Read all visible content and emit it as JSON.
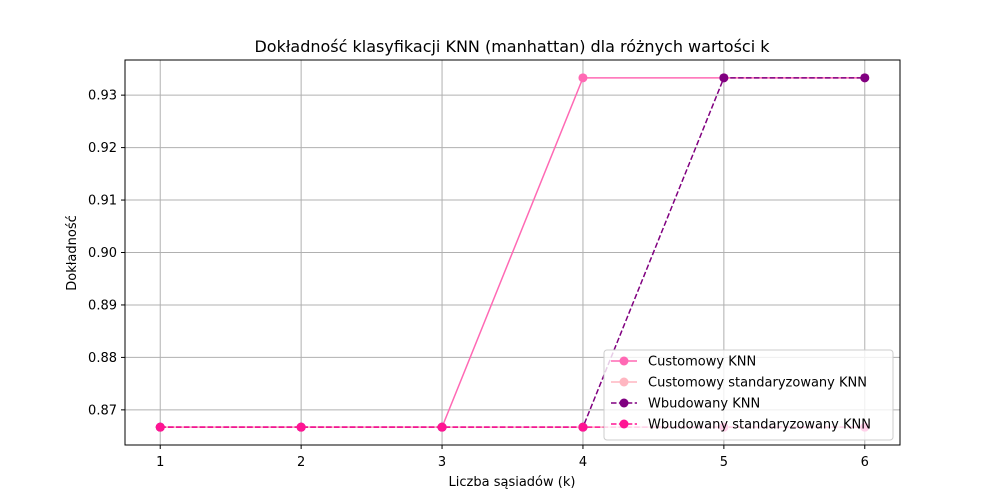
{
  "chart_data": {
    "type": "line",
    "title": "Dokładność klasyfikacji KNN (manhattan) dla różnych wartości k",
    "xlabel": "Liczba sąsiadów (k)",
    "ylabel": "Dokładność",
    "x": [
      1,
      2,
      3,
      4,
      5,
      6
    ],
    "x_ticks": [
      "1",
      "2",
      "3",
      "4",
      "5",
      "6"
    ],
    "xlim": [
      0.75,
      6.25
    ],
    "ylim": [
      0.8633,
      0.9367
    ],
    "y_ticks": [
      0.87,
      0.88,
      0.89,
      0.9,
      0.91,
      0.92,
      0.93
    ],
    "y_tick_labels": [
      "0.87",
      "0.88",
      "0.89",
      "0.90",
      "0.91",
      "0.92",
      "0.93"
    ],
    "grid": true,
    "legend_position": "lower-right",
    "series": [
      {
        "name": "Customowy KNN",
        "values": [
          0.8667,
          0.8667,
          0.8667,
          0.9333,
          0.9333,
          0.9333
        ],
        "color": "#ff69b4",
        "dash": "solid"
      },
      {
        "name": "Customowy standaryzowany KNN",
        "values": [
          0.8667,
          0.8667,
          0.8667,
          0.8667,
          0.8667,
          0.8667
        ],
        "color": "#ffb6c1",
        "dash": "solid"
      },
      {
        "name": "Wbudowany KNN",
        "values": [
          0.8667,
          0.8667,
          0.8667,
          0.8667,
          0.9333,
          0.9333
        ],
        "color": "#800080",
        "dash": "dashed"
      },
      {
        "name": "Wbudowany standaryzowany KNN",
        "values": [
          0.8667,
          0.8667,
          0.8667,
          0.8667,
          0.8667,
          0.8667
        ],
        "color": "#ff1493",
        "dash": "dashed"
      }
    ]
  }
}
